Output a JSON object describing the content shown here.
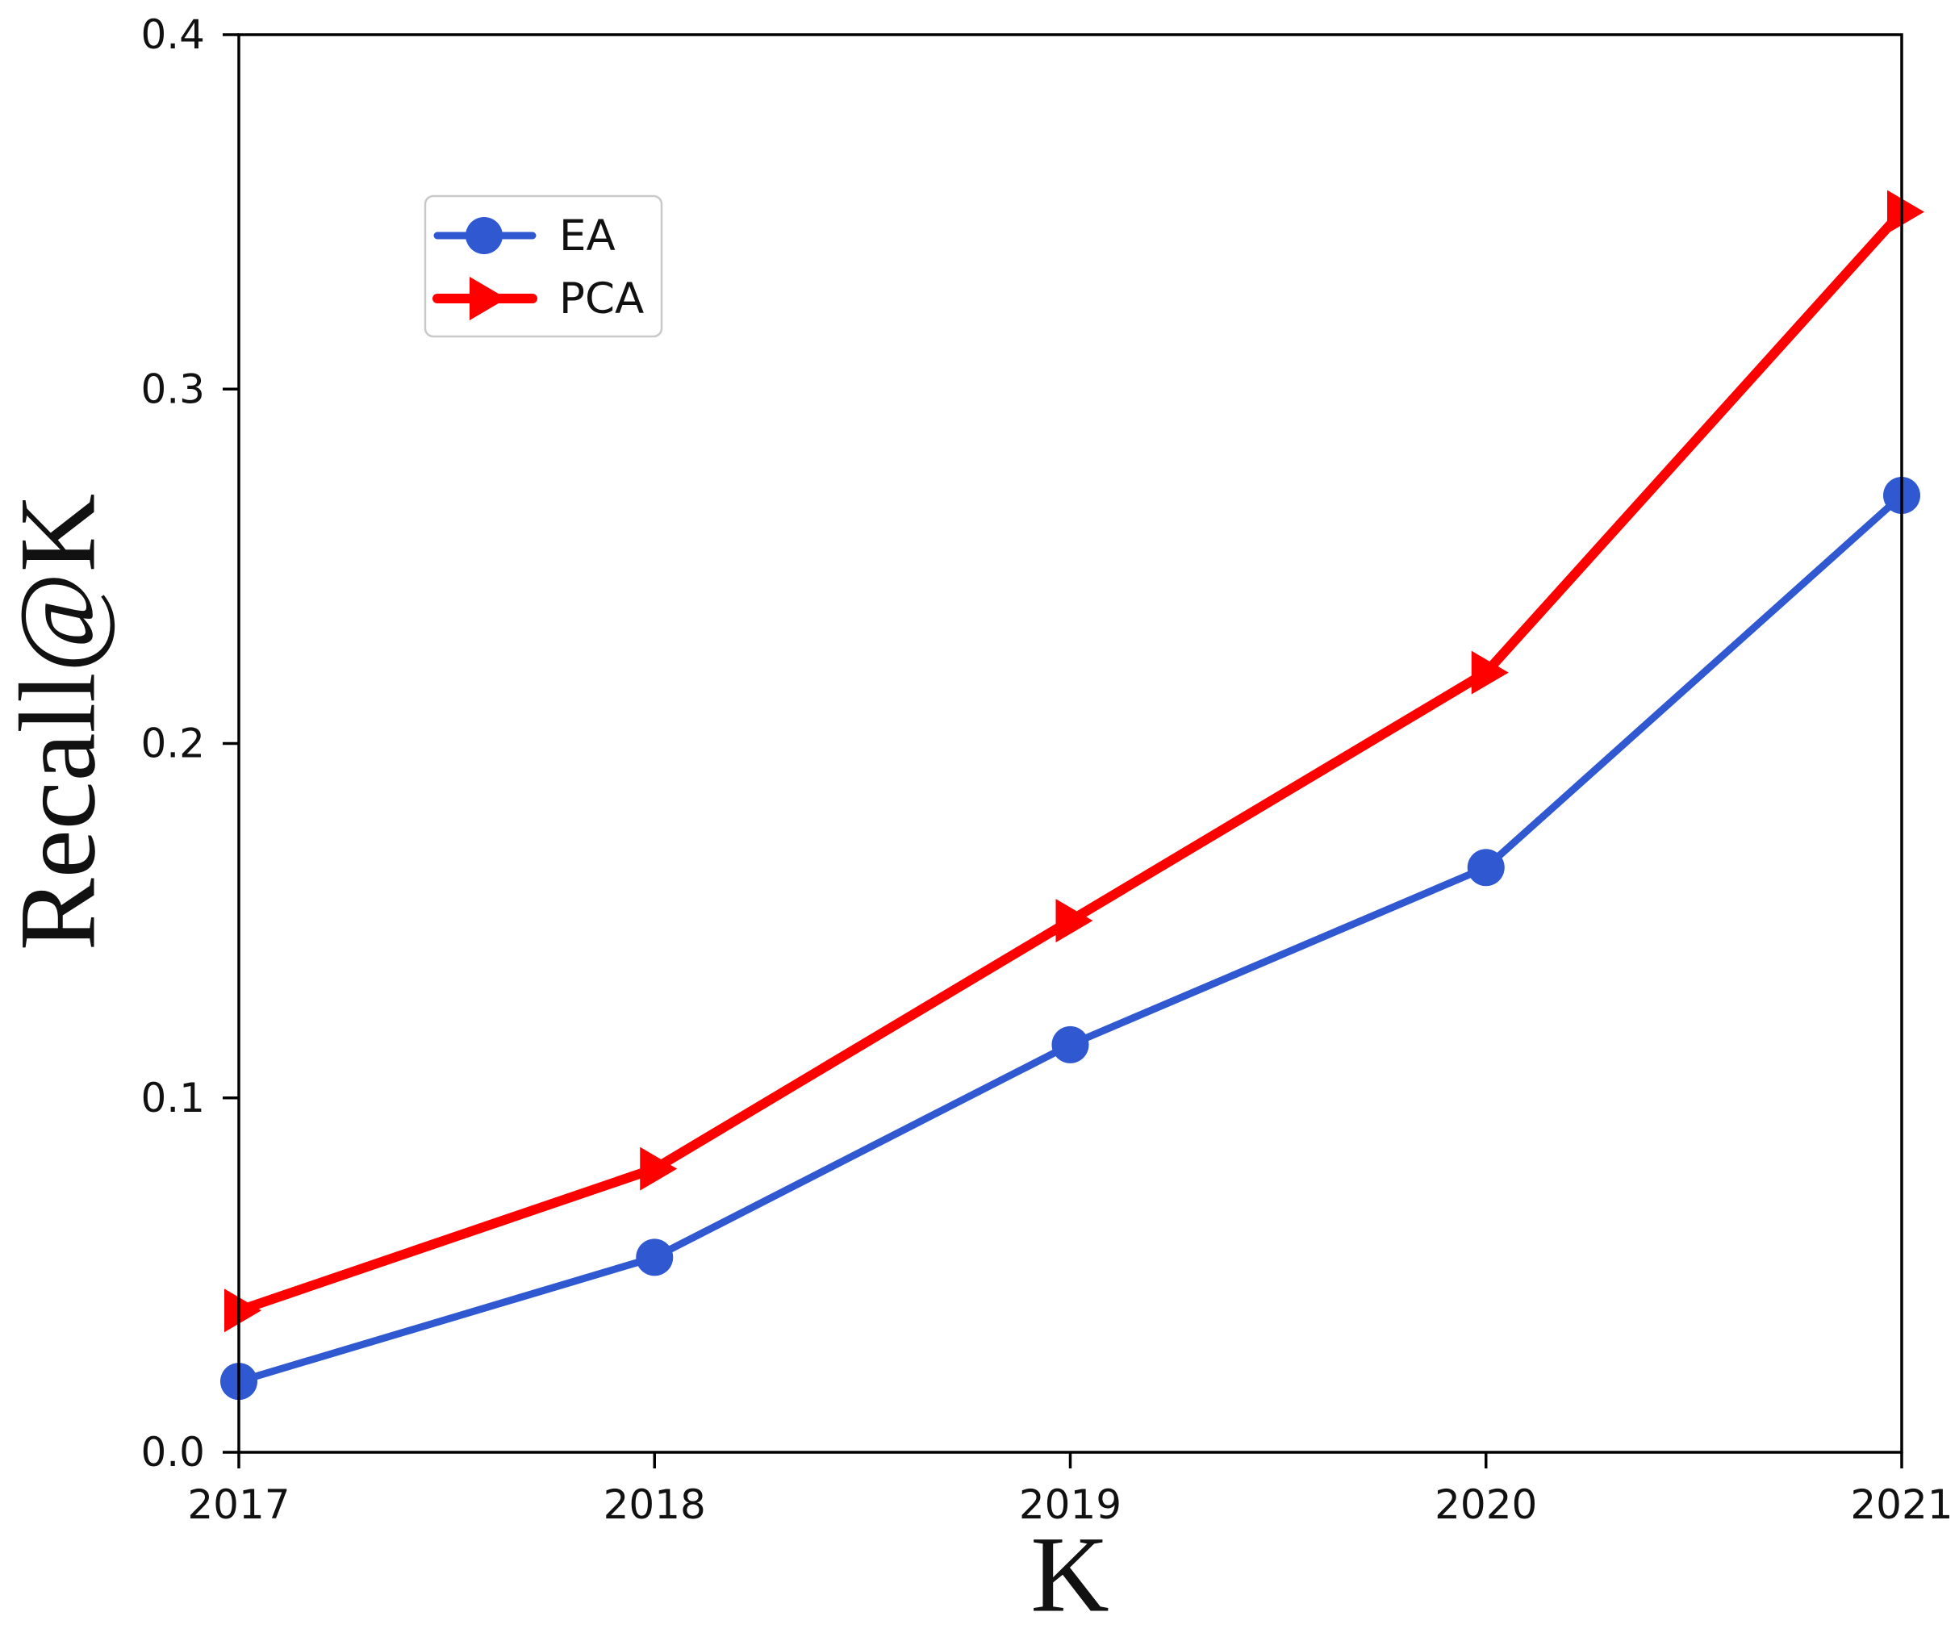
{
  "figure": {
    "background": "#ffffff"
  },
  "colors": {
    "axis": "#000000",
    "tick_text": "#111111",
    "legend_border": "#c9c9c9",
    "legend_background": "#ffffff",
    "ea_series": "#3058d0",
    "pca_series": "#ff0000"
  },
  "chart_data": {
    "type": "line",
    "title": "",
    "xlabel": "K",
    "ylabel": "Recall@K",
    "x": [
      2017,
      2018,
      2019,
      2020,
      2021
    ],
    "xlim": [
      2017,
      2021
    ],
    "ylim": [
      0.0,
      0.4
    ],
    "x_tick_labels": [
      "2017",
      "2018",
      "2019",
      "2020",
      "2021"
    ],
    "y_ticks": [
      0.0,
      0.1,
      0.2,
      0.3,
      0.4
    ],
    "y_tick_labels": [
      "0.0",
      "0.1",
      "0.2",
      "0.3",
      "0.4"
    ],
    "grid": false,
    "legend": {
      "position": "upper-left-inside",
      "entries": [
        "EA",
        "PCA"
      ]
    },
    "series": [
      {
        "name": "EA",
        "color": "#3058d0",
        "marker": "circle",
        "line_width": 9,
        "values": [
          0.02,
          0.055,
          0.115,
          0.165,
          0.27
        ]
      },
      {
        "name": "PCA",
        "color": "#ff0000",
        "marker": "triangle-right",
        "line_width": 12,
        "values": [
          0.04,
          0.08,
          0.15,
          0.22,
          0.35
        ]
      }
    ]
  }
}
